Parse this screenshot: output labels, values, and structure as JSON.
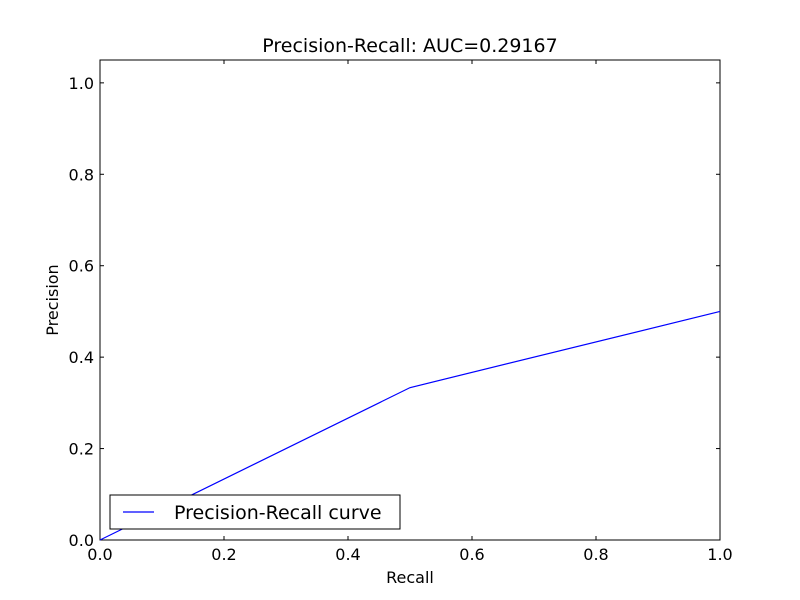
{
  "chart_data": {
    "type": "line",
    "title": "Precision-Recall: AUC=0.29167",
    "xlabel": "Recall",
    "ylabel": "Precision",
    "xlim": [
      0.0,
      1.0
    ],
    "ylim": [
      0.0,
      1.05
    ],
    "xticks": [
      0.0,
      0.2,
      0.4,
      0.6,
      0.8,
      1.0
    ],
    "xtick_labels": [
      "0.0",
      "0.2",
      "0.4",
      "0.6",
      "0.8",
      "1.0"
    ],
    "yticks": [
      0.0,
      0.2,
      0.4,
      0.6,
      0.8,
      1.0
    ],
    "ytick_labels": [
      "0.0",
      "0.2",
      "0.4",
      "0.6",
      "0.8",
      "1.0"
    ],
    "grid": false,
    "legend_position": "lower-left",
    "series": [
      {
        "name": "Precision-Recall curve",
        "color": "#0000ff",
        "x": [
          0.0,
          0.5,
          1.0
        ],
        "y": [
          0.0,
          0.3333,
          0.5
        ]
      }
    ]
  }
}
